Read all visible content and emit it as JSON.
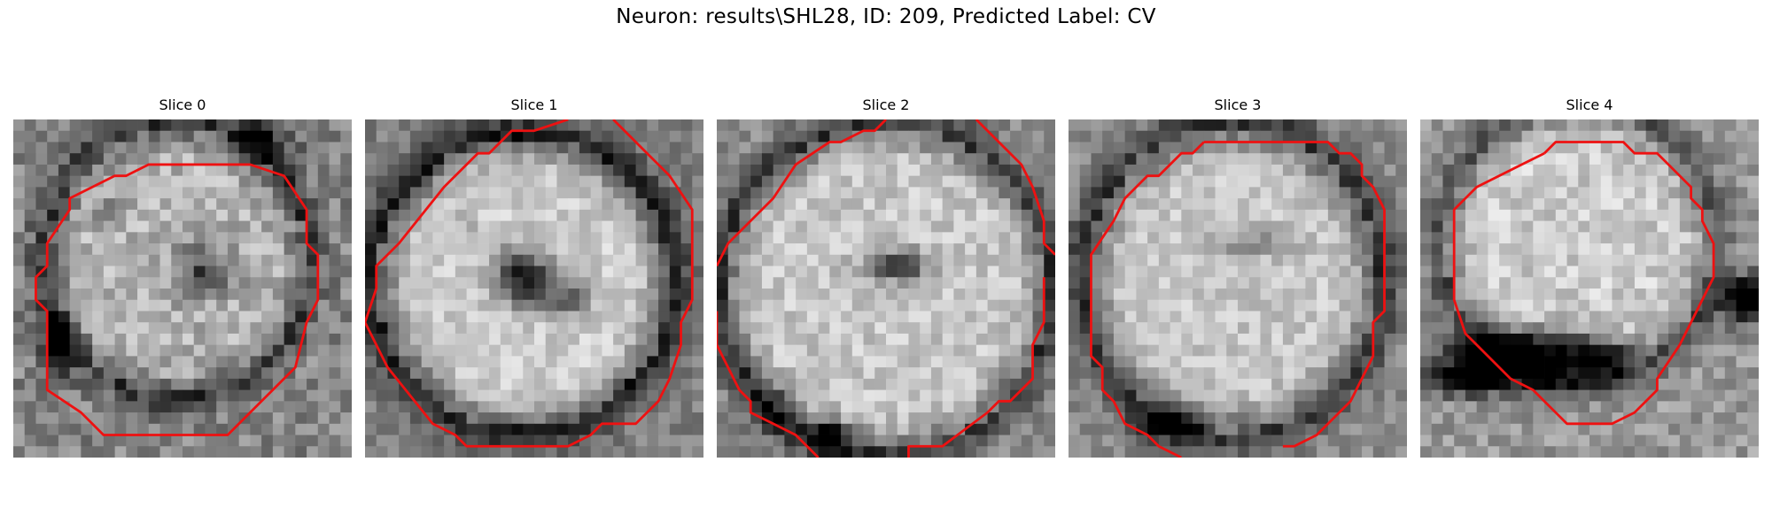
{
  "figure": {
    "title": "Neuron: results\\SHL28, ID: 209, Predicted Label: CV",
    "outline_color": "#ee1111"
  },
  "slices": [
    {
      "title": "Slice 0"
    },
    {
      "title": "Slice 1"
    },
    {
      "title": "Slice 2"
    },
    {
      "title": "Slice 3"
    },
    {
      "title": "Slice 4"
    }
  ]
}
